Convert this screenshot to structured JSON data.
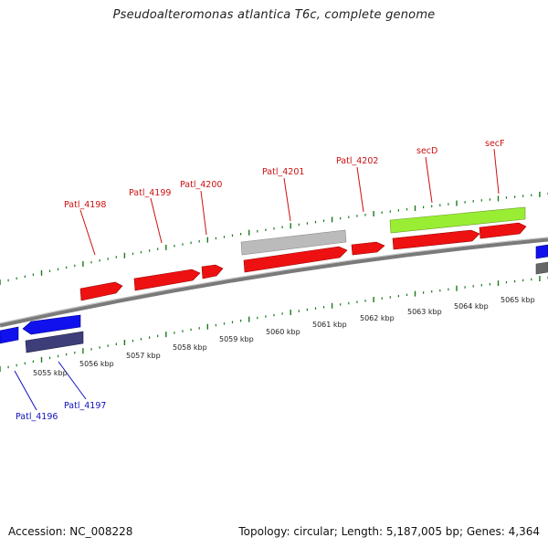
{
  "title": "Pseudoalteromonas atlantica T6c, complete genome",
  "footer": {
    "accession": "Accession: NC_008228",
    "topology": "Topology: circular; Length: 5,187,005 bp; Genes: 4,364"
  },
  "colors": {
    "backbone": "#7a7a7a",
    "tick": "#1a7a1a",
    "forward_cds": "#ee1111",
    "reverse_cds": "#1111ee",
    "pseudo_forward": "#bbbbbb",
    "pseudo_reverse": "#3d3d7a",
    "rna": "#99ee33",
    "forward_label": "#cc1111",
    "reverse_label": "#1111bb"
  },
  "scale_labels": [
    "5055 kbp",
    "5056 kbp",
    "5057 kbp",
    "5058 kbp",
    "5059 kbp",
    "5060 kbp",
    "5061 kbp",
    "5062 kbp",
    "5063 kbp",
    "5064 kbp",
    "5065 kbp"
  ],
  "gene_labels": [
    {
      "text": "Patl_4198",
      "strand": "forward"
    },
    {
      "text": "Patl_4199",
      "strand": "forward"
    },
    {
      "text": "Patl_4200",
      "strand": "forward"
    },
    {
      "text": "Patl_4201",
      "strand": "forward"
    },
    {
      "text": "Patl_4202",
      "strand": "forward"
    },
    {
      "text": "secD",
      "strand": "forward"
    },
    {
      "text": "secF",
      "strand": "forward"
    },
    {
      "text": "Patl_4196",
      "strand": "reverse"
    },
    {
      "text": "Patl_4197",
      "strand": "reverse"
    }
  ]
}
